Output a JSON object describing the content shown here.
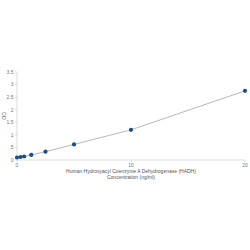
{
  "chart_data": {
    "type": "line",
    "xlabel": [
      "Human Hydroxyacyl Coenzyme A Dehydrogenase (HADH)",
      "Concentration (ng/ml)"
    ],
    "ylabel": "OD",
    "x": [
      0,
      0.313,
      0.625,
      1.25,
      2.5,
      5,
      10,
      20
    ],
    "series": [
      {
        "name": "OD",
        "color": "#1f4e79",
        "marker": "circle",
        "line_style": "solid",
        "values": [
          0.1,
          0.12,
          0.14,
          0.2,
          0.33,
          0.62,
          1.2,
          2.75
        ]
      }
    ],
    "xlim": [
      0,
      20
    ],
    "xticks": [
      0,
      10,
      20
    ],
    "ylim": [
      0,
      3.5
    ],
    "yticks": [
      0,
      {
        "value": 0.5,
        "label": ".5"
      },
      1,
      {
        "value": 1.5,
        "label": "1.5"
      },
      2,
      {
        "value": 2.5,
        "label": "2.5"
      },
      3,
      {
        "value": 3.5,
        "label": "3.5"
      }
    ],
    "grid": false
  }
}
